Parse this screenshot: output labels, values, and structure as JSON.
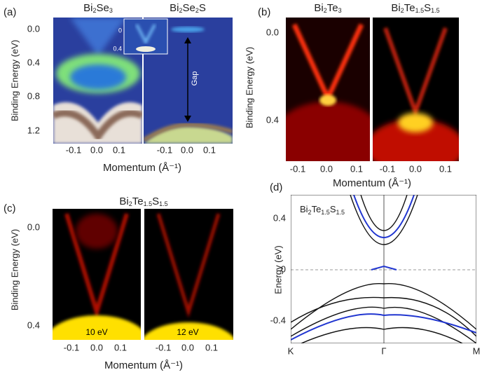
{
  "panels": [
    {
      "label": "(a)",
      "titles": [
        [
          "Bi",
          "2",
          "Se",
          "3"
        ],
        [
          "Bi",
          "2",
          "Se",
          "2",
          "S"
        ]
      ],
      "y_label": "Binding Energy (eV)",
      "y_ticks": [
        "0.0",
        "0.4",
        "0.8",
        "1.2"
      ],
      "x_ticks": [
        [
          "-0.1",
          "0.0",
          "0.1"
        ],
        [
          "-0.1",
          "0.0",
          "0.1"
        ]
      ],
      "x_label": "Momentum (Å⁻¹)",
      "inset_ticks": [
        "0",
        "0.4"
      ],
      "annotation": "Gap"
    },
    {
      "label": "(b)",
      "titles": [
        [
          "Bi",
          "2",
          "Te",
          "3"
        ],
        [
          "Bi",
          "2",
          "Te",
          "1.5",
          "S",
          "1.5"
        ]
      ],
      "y_label": "Binding Energy (eV)",
      "y_ticks": [
        "0.0",
        "0.4"
      ],
      "x_ticks": [
        [
          "-0.1",
          "0.0",
          "0.1"
        ],
        [
          "-0.1",
          "0.0",
          "0.1"
        ]
      ],
      "x_label": "Momentum (Å⁻¹)"
    },
    {
      "label": "(c)",
      "titles": [
        [
          "Bi",
          "2",
          "Te",
          "1.5",
          "S",
          "1.5"
        ]
      ],
      "y_label": "Binding Energy (eV)",
      "y_ticks": [
        "0.0",
        "0.4"
      ],
      "x_ticks": [
        [
          "-0.1",
          "0.0",
          "0.1"
        ],
        [
          "-0.1",
          "0.0",
          "0.1"
        ]
      ],
      "x_label": "Momentum (Å⁻¹)",
      "photon_energies": [
        "10 eV",
        "12 eV"
      ]
    },
    {
      "label": "(d)",
      "titles": [
        [
          "Bi",
          "2",
          "Te",
          "1.5",
          "S",
          "1.5"
        ]
      ],
      "y_label": "Energy (eV)",
      "y_ticks": [
        "0.4",
        "0",
        "-0.4"
      ],
      "x_ticks": [
        [
          "K",
          "Γ",
          "M"
        ]
      ]
    }
  ]
}
